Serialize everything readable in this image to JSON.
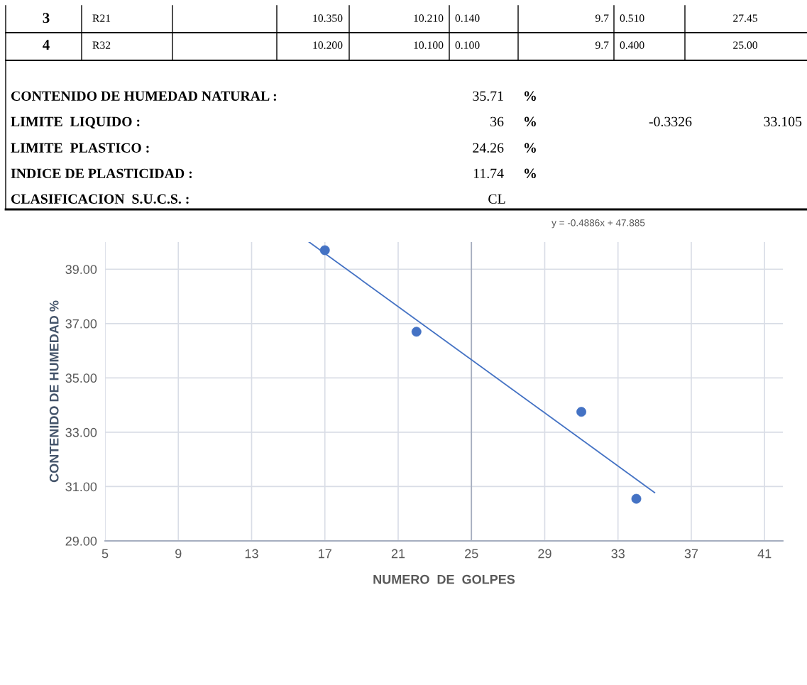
{
  "chart_data": {
    "type": "scatter",
    "xlabel": "NUMERO  DE  GOLPES",
    "ylabel": "CONTENIDO DE HUMEDAD %",
    "series": [
      {
        "color": "#4472c4",
        "marker": "circle",
        "x": [
          17,
          22,
          31,
          34
        ],
        "values": [
          39.7,
          36.7,
          33.75,
          30.55
        ]
      },
      {
        "type": "line",
        "marker": "none",
        "color": "#4472c4",
        "x": [
          16.14,
          35
        ],
        "values": [
          40.0,
          30.78
        ]
      }
    ],
    "xlim": [
      5,
      42
    ],
    "ylim": [
      29,
      40
    ],
    "xticks": [
      5,
      9,
      13,
      17,
      21,
      25,
      29,
      33,
      37,
      41
    ],
    "yticks": [
      {
        "value": 29,
        "label": "29.00"
      },
      {
        "value": 31,
        "label": "31.00"
      },
      {
        "value": 33,
        "label": "33.00"
      },
      {
        "value": 35,
        "label": "35.00"
      },
      {
        "value": 37,
        "label": "37.00"
      },
      {
        "value": 39,
        "label": "39.00"
      }
    ],
    "grid": true,
    "ref_lines": [
      {
        "axis": "x",
        "value": 25,
        "color": "#a6aebf"
      }
    ],
    "annotations": [
      "3",
      "R21",
      "10.350",
      "10.210",
      "0.140",
      "9.7",
      "0.510",
      "27.45",
      "4",
      "R32",
      "10.200",
      "10.100",
      "0.100",
      "9.7",
      "0.400",
      "25.00",
      "CONTENIDO DE HUMEDAD NATURAL :",
      "35.71",
      "%",
      "LIMITE  LIQUIDO :",
      "36",
      "%",
      "-0.3326",
      "33.105",
      "LIMITE  PLASTICO :",
      "24.26",
      "%",
      "INDICE DE PLASTICIDAD :",
      "11.74",
      "%",
      "CLASIFICACION  S.U.C.S. :",
      "CL",
      "y = -0.4886x + 47.885"
    ]
  }
}
